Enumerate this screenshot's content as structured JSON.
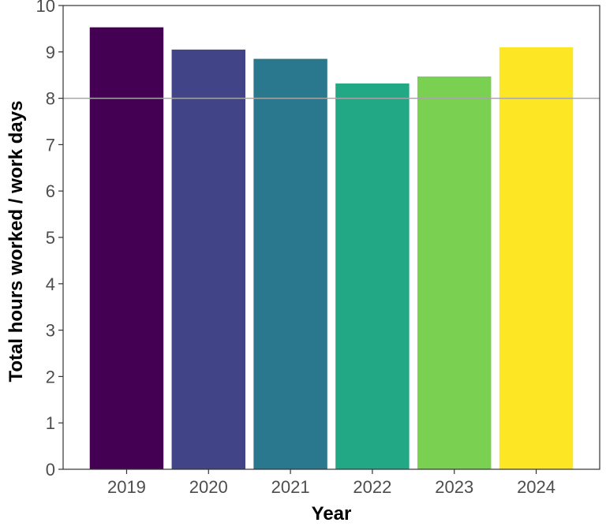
{
  "chart_data": {
    "type": "bar",
    "xlabel": "Year",
    "ylabel": "Total hours worked / work days",
    "categories": [
      "2019",
      "2020",
      "2021",
      "2022",
      "2023",
      "2024"
    ],
    "values": [
      9.53,
      9.05,
      8.85,
      8.32,
      8.47,
      9.1
    ],
    "colors": [
      "#440154",
      "#414487",
      "#2a788e",
      "#22a884",
      "#7ad151",
      "#fde725"
    ],
    "ylim": [
      0,
      10
    ],
    "yticks": [
      "0",
      "1",
      "2",
      "3",
      "4",
      "5",
      "6",
      "7",
      "8",
      "9",
      "10"
    ],
    "reference_line": {
      "y": 8,
      "color": "#a6a6a6"
    },
    "grid": false,
    "legend": "none"
  }
}
